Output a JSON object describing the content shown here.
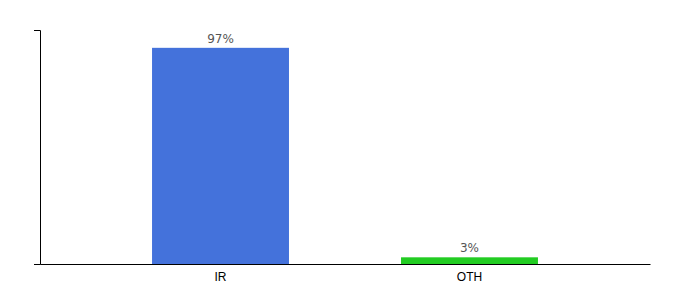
{
  "chart_data": {
    "type": "bar",
    "categories": [
      "IR",
      "OTH"
    ],
    "values": [
      97,
      3
    ],
    "value_labels": [
      "97%",
      "3%"
    ],
    "data_labels": true,
    "colors": [
      "#4472db",
      "#22cc22"
    ],
    "ylim": [
      0,
      105
    ],
    "yticks": [],
    "tick_labels": "x"
  }
}
